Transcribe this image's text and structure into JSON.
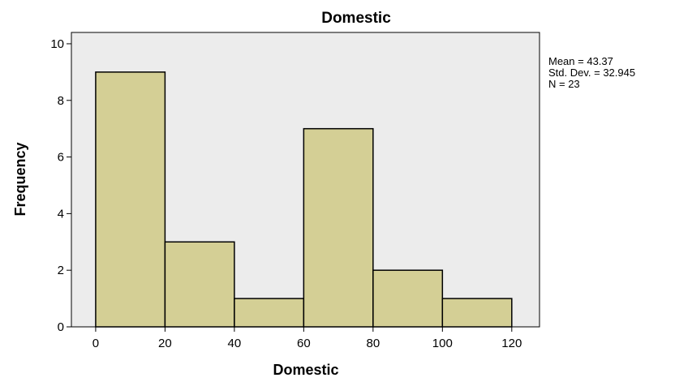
{
  "chart_data": {
    "type": "bar",
    "subtype": "histogram",
    "title": "Domestic",
    "xlabel": "Domestic",
    "ylabel": "Frequency",
    "bins": [
      {
        "start": 0,
        "end": 20,
        "count": 9
      },
      {
        "start": 20,
        "end": 40,
        "count": 3
      },
      {
        "start": 40,
        "end": 60,
        "count": 1
      },
      {
        "start": 60,
        "end": 80,
        "count": 7
      },
      {
        "start": 80,
        "end": 100,
        "count": 2
      },
      {
        "start": 100,
        "end": 120,
        "count": 1
      }
    ],
    "xlim": [
      -7,
      128
    ],
    "ylim": [
      0,
      10.4
    ],
    "xticks": [
      0,
      20,
      40,
      60,
      80,
      100,
      120
    ],
    "yticks": [
      0,
      2,
      4,
      6,
      8,
      10
    ],
    "grid": false,
    "colors": {
      "bar_fill": "#d4cf95",
      "bar_stroke": "#000000",
      "plot_background": "#ececec",
      "page_background": "#ffffff"
    },
    "stats": {
      "mean": "Mean = 43.37",
      "std_dev": "Std. Dev. = 32.945",
      "n": "N = 23"
    }
  }
}
